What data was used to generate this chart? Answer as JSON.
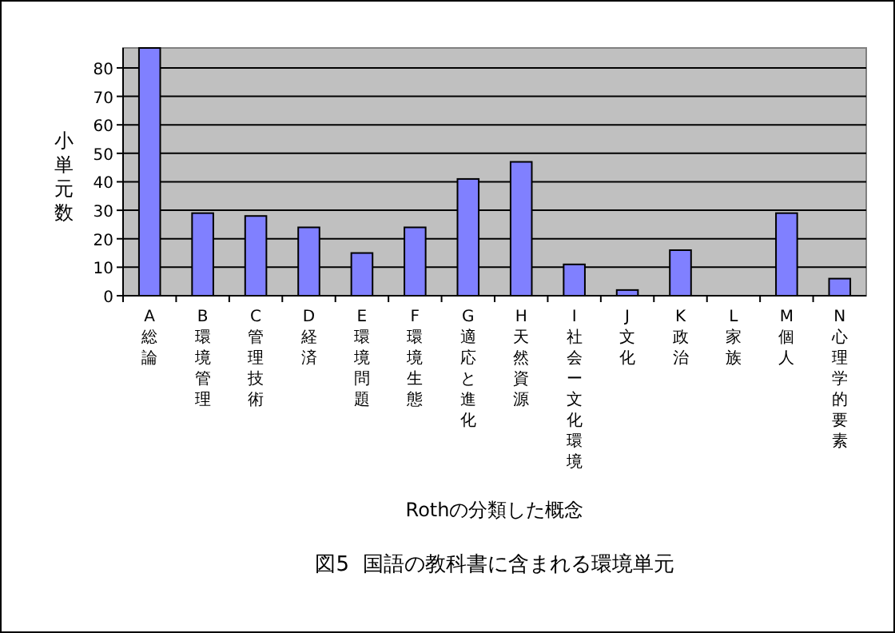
{
  "chart_data": {
    "type": "bar",
    "title": "図5  国語の教科書に含まれる環境単元",
    "xlabel": "Rothの分類した概念",
    "ylabel": "小単元数",
    "categories": [
      "A総論",
      "B環境管理",
      "C管理技術",
      "D経済",
      "E環境問題",
      "F環境生態",
      "G適応と進化",
      "H天然資源",
      "I社会ー文化環境",
      "J文化",
      "K政治",
      "L家族",
      "M個人",
      "N心理学的要素"
    ],
    "values": [
      87,
      29,
      28,
      24,
      15,
      24,
      41,
      47,
      11,
      2,
      16,
      0,
      29,
      6
    ],
    "color": "#8080ff",
    "ylim": [
      0,
      87
    ],
    "yticks": [
      0,
      10,
      20,
      30,
      40,
      50,
      60,
      70,
      80
    ],
    "grid": "y",
    "legend": false
  }
}
